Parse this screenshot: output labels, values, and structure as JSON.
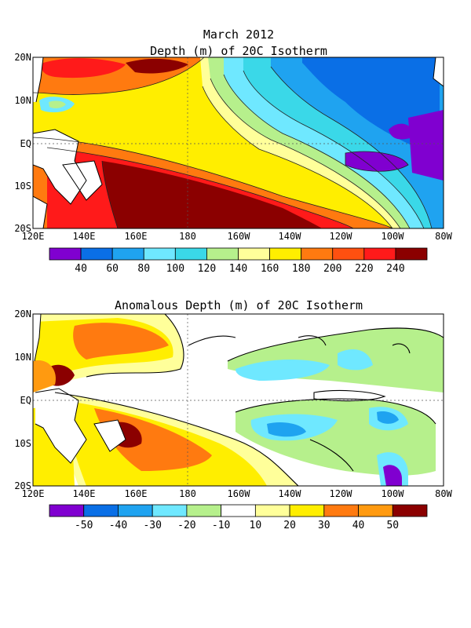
{
  "figure": {
    "header": "March 2012"
  },
  "panels": [
    {
      "title": "Depth (m) of 20C Isotherm",
      "lat_labels": [
        "20N",
        "10N",
        "EQ",
        "10S",
        "20S"
      ],
      "lon_labels": [
        "120E",
        "140E",
        "160E",
        "180",
        "160W",
        "140W",
        "120W",
        "100W",
        "80W"
      ],
      "colorbar": {
        "colors": [
          "#8000d0",
          "#0a6fe6",
          "#1fa3f0",
          "#6fe8ff",
          "#3ad8e8",
          "#b6f08c",
          "#ffff9a",
          "#ffee00",
          "#ff7a10",
          "#ff5010",
          "#ff1a1a",
          "#8b0000"
        ],
        "labels": [
          "40",
          "60",
          "80",
          "100",
          "120",
          "140",
          "160",
          "180",
          "200",
          "220",
          "240"
        ]
      }
    },
    {
      "title": "Anomalous Depth (m) of 20C Isotherm",
      "lat_labels": [
        "20N",
        "10N",
        "EQ",
        "10S",
        "20S"
      ],
      "lon_labels": [
        "120E",
        "140E",
        "160E",
        "180",
        "160W",
        "140W",
        "120W",
        "100W",
        "80W"
      ],
      "colorbar": {
        "colors": [
          "#8000d0",
          "#0a6fe6",
          "#1fa3f0",
          "#6fe8ff",
          "#b6f08c",
          "#ffffff",
          "#ffff9a",
          "#ffee00",
          "#ff7a10",
          "#ff9a10",
          "#8b0000"
        ],
        "labels": [
          "-50",
          "-40",
          "-30",
          "-20",
          "-10",
          "10",
          "20",
          "30",
          "40",
          "50"
        ]
      }
    }
  ]
}
